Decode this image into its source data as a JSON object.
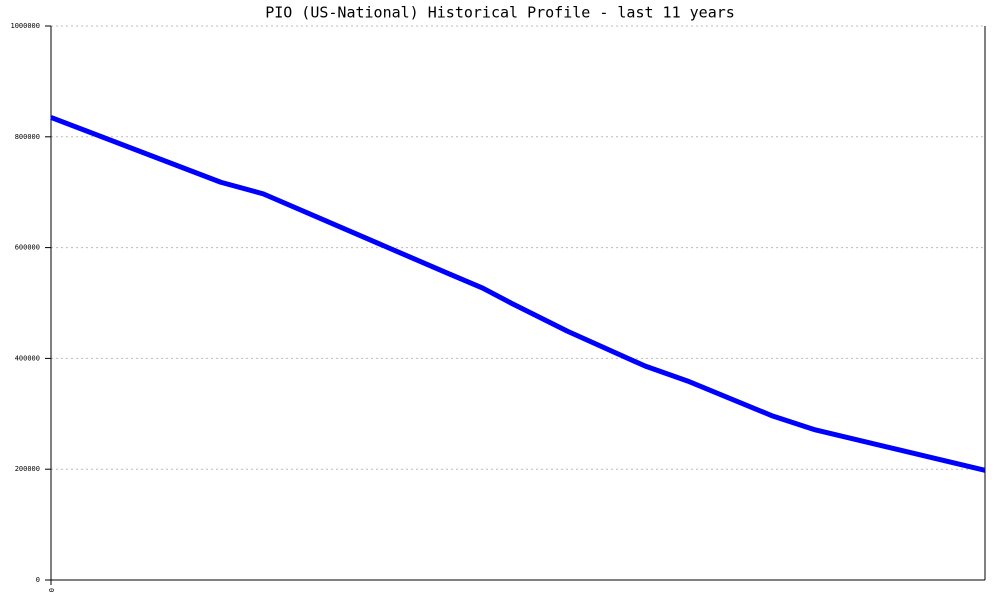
{
  "chart_data": {
    "type": "line",
    "title": "PIO (US-National) Historical Profile - last 11 years",
    "x": [
      0,
      24,
      30,
      56,
      61,
      65,
      73,
      84,
      90,
      102,
      108,
      132
    ],
    "series": [
      {
        "name": "PIO",
        "color": "#0000ff",
        "values": [
          835000,
          718000,
          697000,
          554000,
          527000,
          500000,
          449000,
          386000,
          359000,
          296000,
          271000,
          198000
        ]
      }
    ],
    "xlim": [
      0,
      132
    ],
    "xticks": [
      0
    ],
    "ylim": [
      0,
      1000000
    ],
    "yticks": [
      0,
      200000,
      400000,
      600000,
      800000,
      1000000
    ],
    "grid": true
  }
}
